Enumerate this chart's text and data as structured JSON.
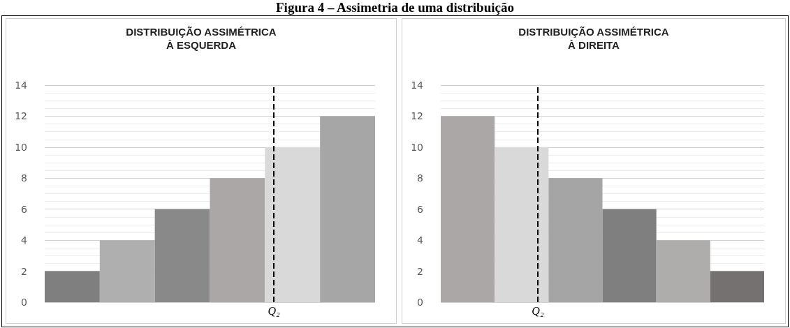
{
  "chart_data": [
    {
      "type": "other",
      "title": "Figura 4 – Assimetria de uma distribuição"
    },
    {
      "type": "bar",
      "title": "DISTRIBUIÇÃO ASSIMÉTRICA\nÀ ESQUERDA",
      "categories": [
        null,
        null,
        null,
        null,
        null,
        null
      ],
      "values": [
        2,
        4,
        6,
        8,
        10,
        12
      ],
      "colors": [
        "#7f7f7f",
        "#afafaf",
        "#898989",
        "#aba7a7",
        "#d9d9d9",
        "#a6a6a6"
      ],
      "ylim": [
        0,
        14
      ],
      "yticks": [
        0,
        2,
        4,
        6,
        8,
        10,
        12,
        14
      ],
      "grid": "y",
      "tick_labels": "y",
      "annotations": [
        "Q₂"
      ]
    },
    {
      "type": "bar",
      "title": "DISTRIBUIÇÃO ASSIMÉTRICA\nÀ DIREITA",
      "categories": [
        null,
        null,
        null,
        null,
        null,
        null
      ],
      "values": [
        12,
        10,
        8,
        6,
        4,
        2
      ],
      "colors": [
        "#aba7a7",
        "#d9d9d9",
        "#a5a5a5",
        "#7f7f7f",
        "#afacac",
        "#757171"
      ],
      "ylim": [
        0,
        14
      ],
      "yticks": [
        0,
        2,
        4,
        6,
        8,
        10,
        12,
        14
      ],
      "grid": "y",
      "tick_labels": "y",
      "annotations": [
        "Q₂"
      ]
    }
  ]
}
